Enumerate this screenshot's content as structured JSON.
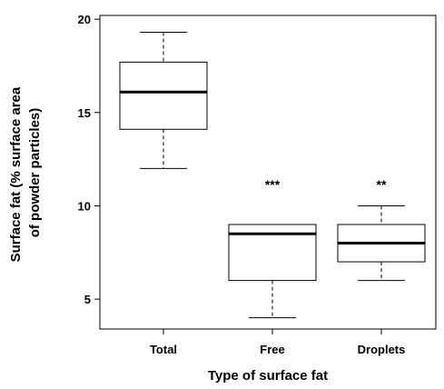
{
  "chart_data": {
    "type": "box",
    "xlabel": "Type of surface fat",
    "ylabel_lines": [
      "Surface fat (% surface area",
      "of powder particles)"
    ],
    "ylim": [
      3.4,
      20.2
    ],
    "yticks": [
      5,
      10,
      15,
      20
    ],
    "grid": false,
    "legend": "none",
    "categories": [
      "Total",
      "Free",
      "Droplets"
    ],
    "boxes": [
      {
        "category": "Total",
        "min": 12.0,
        "q1": 14.1,
        "median": 16.1,
        "q3": 17.7,
        "max": 19.3,
        "annotation": ""
      },
      {
        "category": "Free",
        "min": 4.0,
        "q1": 6.0,
        "median": 8.5,
        "q3": 9.0,
        "max": 9.0,
        "annotation": "***"
      },
      {
        "category": "Droplets",
        "min": 6.0,
        "q1": 7.0,
        "median": 8.0,
        "q3": 9.0,
        "max": 10.0,
        "annotation": "**"
      }
    ]
  }
}
